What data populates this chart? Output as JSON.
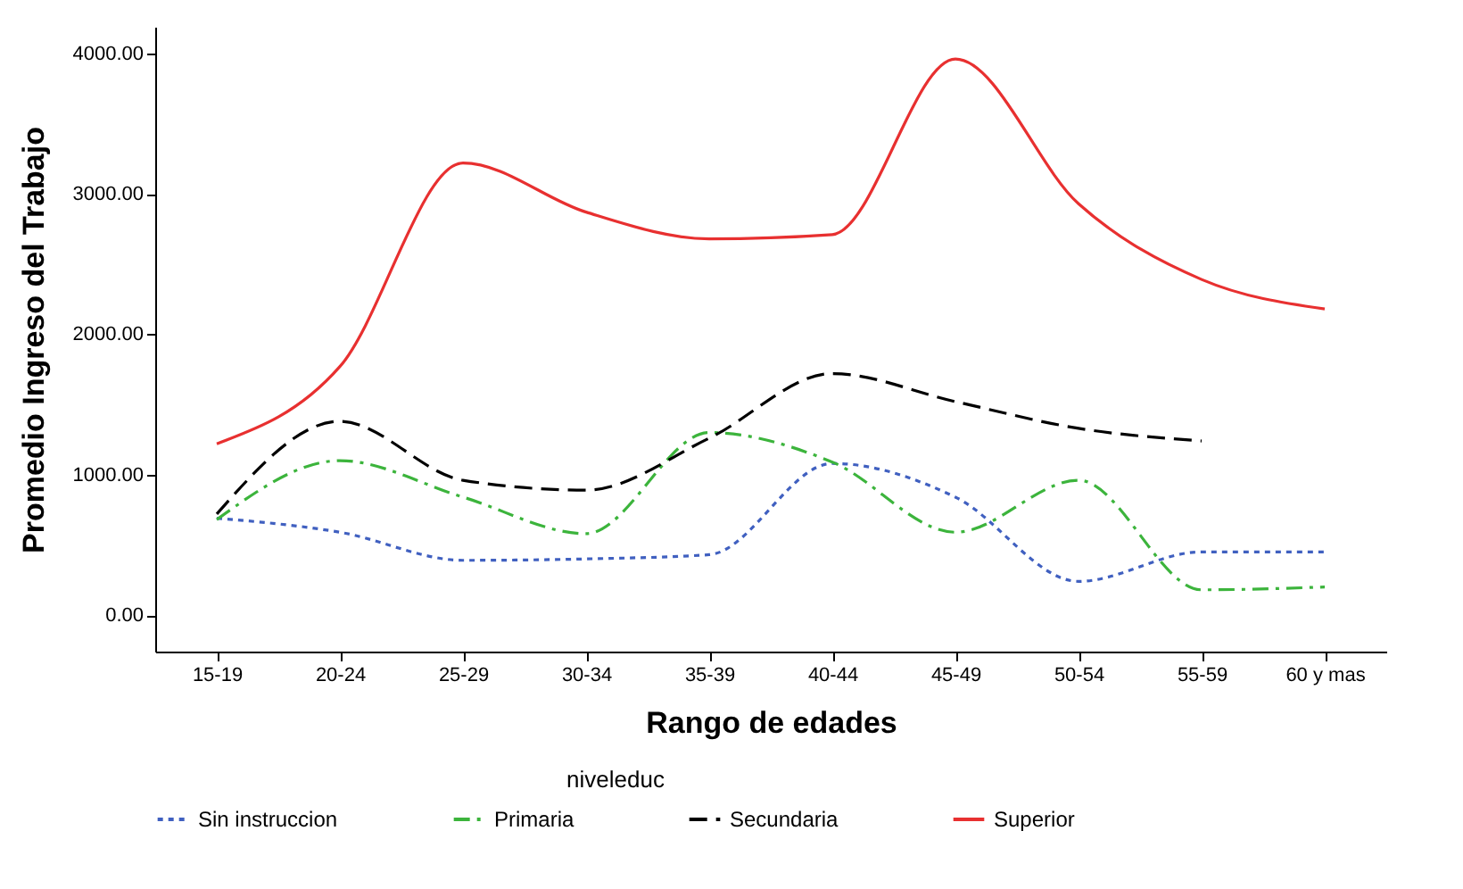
{
  "chart_data": {
    "type": "line",
    "xlabel": "Rango de edades",
    "ylabel": "Promedio Ingreso del Trabajo",
    "legend_title": "niveleduc",
    "categories": [
      "15-19",
      "20-24",
      "25-29",
      "30-34",
      "35-39",
      "40-44",
      "45-49",
      "50-54",
      "55-59",
      "60 y mas"
    ],
    "series": [
      {
        "name": "Sin instruccion",
        "color": "#4060c0",
        "line_style": "dotted",
        "values": [
          690,
          590,
          390,
          400,
          430,
          1080,
          840,
          240,
          450,
          450
        ]
      },
      {
        "name": "Primaria",
        "color": "#3cb43c",
        "line_style": "dashdot",
        "values": [
          680,
          1100,
          840,
          580,
          1300,
          1090,
          590,
          960,
          180,
          200
        ]
      },
      {
        "name": "Secundaria",
        "color": "#000000",
        "line_style": "dashed",
        "values": [
          720,
          1380,
          960,
          890,
          1260,
          1720,
          1520,
          1330,
          1240,
          null
        ]
      },
      {
        "name": "Superior",
        "color": "#e83030",
        "line_style": "solid",
        "values": [
          1220,
          1770,
          3220,
          2870,
          2680,
          2710,
          3960,
          2930,
          2390,
          2180
        ]
      }
    ],
    "ylim": [
      -260,
      4190
    ],
    "yticks": [
      {
        "value": 0,
        "label": "0.00"
      },
      {
        "value": 1000,
        "label": "1000.00"
      },
      {
        "value": 2000,
        "label": "2000.00"
      },
      {
        "value": 3000,
        "label": "3000.00"
      },
      {
        "value": 4000,
        "label": "4000.00"
      }
    ],
    "grid": false,
    "legend": "bottom",
    "marker": "none"
  }
}
